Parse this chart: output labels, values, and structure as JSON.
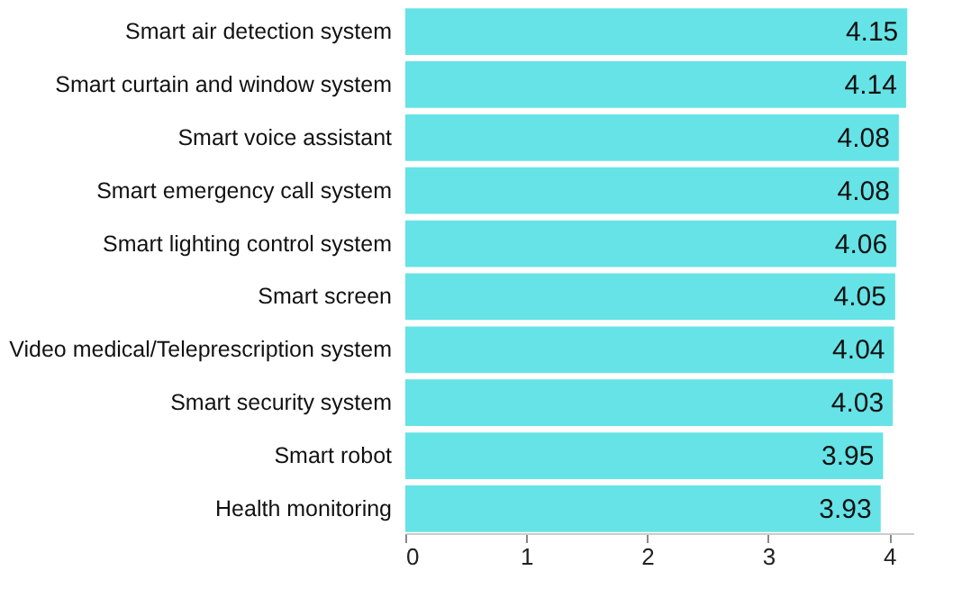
{
  "chart_data": {
    "type": "bar",
    "orientation": "horizontal",
    "categories": [
      "Smart air detection system",
      "Smart curtain and window system",
      "Smart voice assistant",
      "Smart emergency call system",
      "Smart lighting control system",
      "Smart screen",
      "Video medical/Teleprescription system",
      "Smart security system",
      "Smart robot",
      "Health monitoring"
    ],
    "values": [
      4.15,
      4.14,
      4.08,
      4.08,
      4.06,
      4.05,
      4.04,
      4.03,
      3.95,
      3.93
    ],
    "color": "#66e3e6",
    "xlim": [
      0,
      4.2
    ],
    "xticks": [
      0,
      1,
      2,
      3,
      4
    ],
    "data_labels": true,
    "grid": false
  }
}
